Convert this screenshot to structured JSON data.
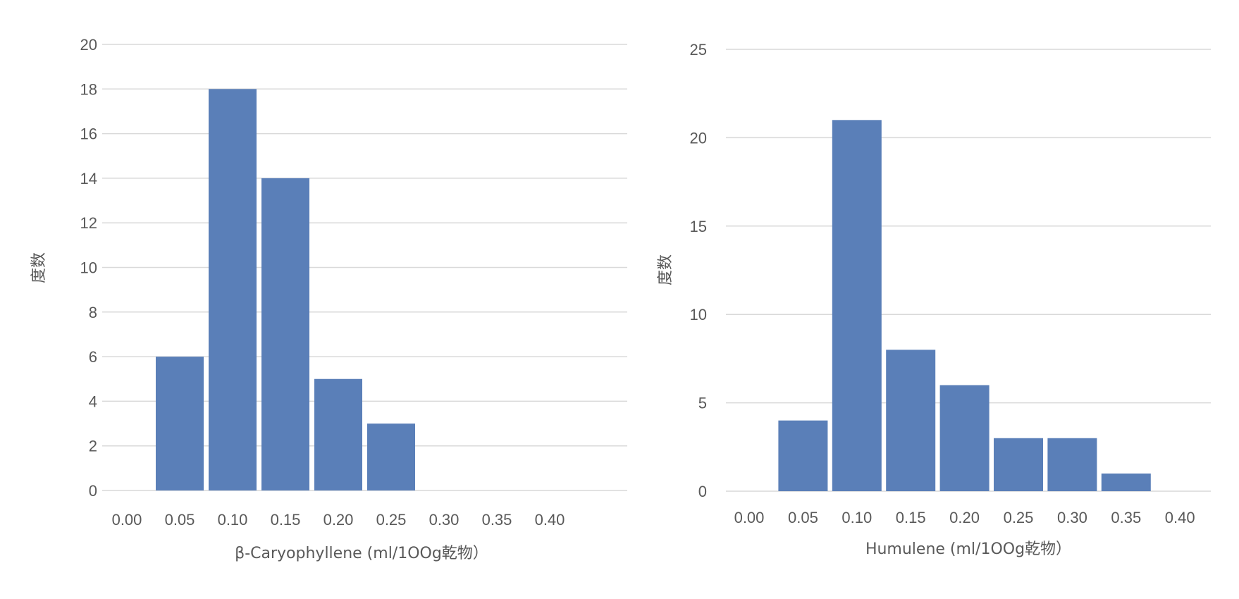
{
  "chart_data": [
    {
      "type": "bar",
      "title": "",
      "xlabel": "β-Caryophyllene (ml/1OOg乾物）",
      "ylabel": "度数",
      "categories": [
        "0.00",
        "0.05",
        "0.10",
        "0.15",
        "0.20",
        "0.25",
        "0.30",
        "0.35",
        "0.40"
      ],
      "values": [
        0,
        6,
        18,
        14,
        5,
        3,
        0,
        0,
        0
      ],
      "ylim": [
        0,
        20
      ],
      "yticks": [
        "0",
        "2",
        "4",
        "6",
        "8",
        "10",
        "12",
        "14",
        "16",
        "18",
        "20"
      ],
      "grid": true,
      "color": "#5a7fb8"
    },
    {
      "type": "bar",
      "title": "",
      "xlabel": "Humulene (ml/1OOg乾物）",
      "ylabel": "度数",
      "categories": [
        "0.00",
        "0.05",
        "0.10",
        "0.15",
        "0.20",
        "0.25",
        "0.30",
        "0.35",
        "0.40"
      ],
      "values": [
        0,
        4,
        21,
        8,
        6,
        3,
        3,
        1,
        0
      ],
      "ylim": [
        0,
        25
      ],
      "yticks": [
        "0",
        "5",
        "10",
        "15",
        "20",
        "25"
      ],
      "grid": true,
      "color": "#5a7fb8"
    }
  ]
}
